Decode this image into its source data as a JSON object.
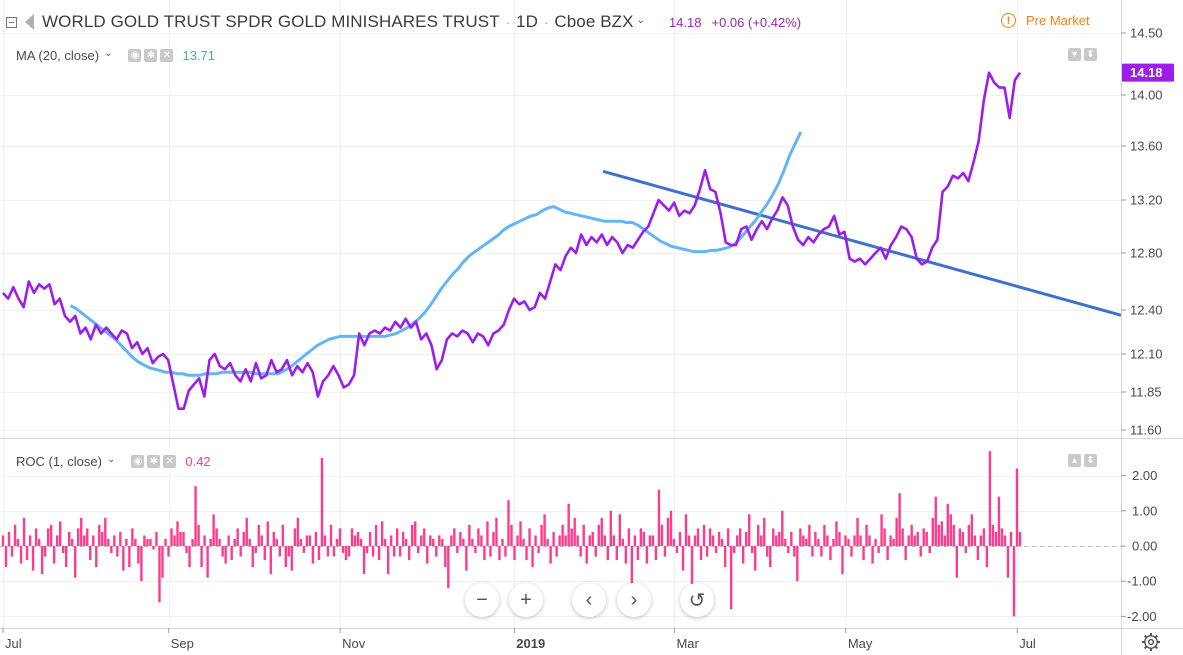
{
  "header": {
    "symbol_title": "WORLD GOLD TRUST SPDR GOLD MINISHARES TRUST",
    "interval": "1D",
    "exchange": "Cboe BZX",
    "last": "14.18",
    "change": "+0.06 (+0.42%)",
    "pre_market": "Pre Market",
    "last_color": "#9c27b0",
    "ma_label": "MA (20, close)",
    "ma_value": "13.71",
    "roc_label": "ROC (1, close)",
    "roc_value": "0.42"
  },
  "colors": {
    "price": "#9b1fe8",
    "ma": "#64b5f6",
    "trend": "#3f71cc",
    "roc": "#ff3b8d",
    "grid": "#f0f0f0",
    "axis_text": "#4a4a4a"
  },
  "icons": [
    "collapse-icon",
    "flag-icon",
    "dropdown-chevron-icon",
    "eye-icon",
    "settings-icon",
    "close-icon",
    "alert-icon",
    "gear-icon",
    "arrow-up-icon",
    "arrow-down-icon"
  ],
  "nav": {
    "zoom_out": "−",
    "zoom_in": "+",
    "back": "‹",
    "forward": "›",
    "reset": "↺"
  },
  "chart_data": [
    {
      "type": "line",
      "title": "WORLD GOLD TRUST SPDR GOLD MINISHARES TRUST · 1D · Cboe BZX",
      "x_ticks": [
        {
          "label": "Jul",
          "x": 0.0
        },
        {
          "label": "Sep",
          "x": 59.0
        },
        {
          "label": "Nov",
          "x": 120.0
        },
        {
          "label": "2019",
          "x": 182.0
        },
        {
          "label": "Mar",
          "x": 239.0
        },
        {
          "label": "May",
          "x": 300.0
        },
        {
          "label": "Jul",
          "x": 361.0
        }
      ],
      "ylim": [
        11.5,
        14.6
      ],
      "y_ticks": [
        11.6,
        11.85,
        12.1,
        12.4,
        12.8,
        13.2,
        13.6,
        14.0,
        14.5
      ],
      "last_value_label": "14.18",
      "series": [
        {
          "name": "Price",
          "step": 2,
          "values": [
            12.52,
            12.48,
            12.56,
            12.48,
            12.42,
            12.6,
            12.52,
            12.58,
            12.55,
            12.58,
            12.44,
            12.48,
            12.36,
            12.32,
            12.36,
            12.24,
            12.28,
            12.2,
            12.3,
            12.24,
            12.28,
            12.24,
            12.2,
            12.26,
            12.24,
            12.14,
            12.18,
            12.1,
            12.14,
            12.04,
            12.08,
            12.1,
            12.06,
            11.9,
            11.74,
            11.74,
            11.86,
            11.9,
            11.94,
            11.82,
            12.06,
            12.1,
            12.02,
            12.0,
            12.04,
            11.96,
            11.92,
            12.0,
            11.92,
            12.04,
            11.94,
            11.96,
            12.06,
            11.98,
            12.0,
            12.06,
            11.96,
            12.02,
            11.98,
            12.04,
            11.98,
            11.82,
            11.92,
            11.96,
            12.02,
            11.96,
            11.88,
            11.9,
            11.96,
            12.24,
            12.16,
            12.24,
            12.26,
            12.24,
            12.28,
            12.26,
            12.32,
            12.28,
            12.34,
            12.28,
            12.32,
            12.2,
            12.24,
            12.16,
            12.0,
            12.06,
            12.2,
            12.24,
            12.22,
            12.26,
            12.24,
            12.18,
            12.24,
            12.22,
            12.16,
            12.24,
            12.26,
            12.3,
            12.4,
            12.48,
            12.44,
            12.46,
            12.4,
            12.42,
            12.52,
            12.48,
            12.6,
            12.72,
            12.68,
            12.78,
            12.84,
            12.8,
            12.94,
            12.86,
            12.92,
            12.88,
            12.94,
            12.86,
            12.92,
            12.88,
            12.8,
            12.86,
            12.84,
            12.9,
            12.96,
            13.0,
            13.1,
            13.2,
            13.16,
            13.12,
            13.18,
            13.08,
            13.12,
            13.1,
            13.16,
            13.28,
            13.42,
            13.28,
            13.26,
            13.1,
            12.88,
            12.86,
            12.86,
            12.98,
            13.0,
            12.9,
            12.98,
            13.04,
            12.98,
            13.06,
            13.12,
            13.22,
            13.16,
            13.0,
            12.9,
            12.86,
            12.92,
            12.88,
            12.94,
            12.98,
            13.0,
            13.08,
            12.94,
            12.96,
            12.76,
            12.74,
            12.76,
            12.72,
            12.76,
            12.8,
            12.84,
            12.76,
            12.86,
            12.92,
            13.0,
            12.98,
            12.92,
            12.76,
            12.72,
            12.74,
            12.84,
            12.9,
            13.26,
            13.3,
            13.38,
            13.36,
            13.4,
            13.34,
            13.48,
            13.64,
            13.96,
            14.18,
            14.1,
            14.06,
            14.06,
            13.82,
            14.12,
            14.18
          ]
        },
        {
          "name": "MA (20, close)",
          "x_start": 24,
          "step": 2,
          "values": [
            12.43,
            12.41,
            12.38,
            12.35,
            12.32,
            12.29,
            12.26,
            12.23,
            12.2,
            12.16,
            12.12,
            12.08,
            12.05,
            12.03,
            12.01,
            12.0,
            11.99,
            11.98,
            11.98,
            11.97,
            11.97,
            11.96,
            11.96,
            11.96,
            11.97,
            11.97,
            11.97,
            11.98,
            11.98,
            11.98,
            11.98,
            11.98,
            11.98,
            11.97,
            11.97,
            11.97,
            11.97,
            11.97,
            11.99,
            12.01,
            12.04,
            12.07,
            12.1,
            12.13,
            12.16,
            12.18,
            12.2,
            12.21,
            12.22,
            12.22,
            12.22,
            12.22,
            12.22,
            12.22,
            12.22,
            12.22,
            12.22,
            12.23,
            12.24,
            12.26,
            12.28,
            12.31,
            12.34,
            12.38,
            12.43,
            12.49,
            12.55,
            12.6,
            12.65,
            12.69,
            12.74,
            12.78,
            12.81,
            12.84,
            12.87,
            12.9,
            12.93,
            12.97,
            13.0,
            13.02,
            13.04,
            13.06,
            13.08,
            13.09,
            13.12,
            13.14,
            13.15,
            13.13,
            13.11,
            13.1,
            13.09,
            13.08,
            13.07,
            13.06,
            13.05,
            13.04,
            13.04,
            13.04,
            13.04,
            13.03,
            13.03,
            13.01,
            12.98,
            12.95,
            12.92,
            12.89,
            12.87,
            12.85,
            12.84,
            12.83,
            12.82,
            12.81,
            12.81,
            12.81,
            12.82,
            12.82,
            12.83,
            12.84,
            12.86,
            12.9,
            12.95,
            13.0,
            13.05,
            13.11,
            13.17,
            13.24,
            13.32,
            13.42,
            13.53,
            13.62,
            13.71
          ]
        }
      ],
      "trendline": {
        "x": [
          214,
          362
        ],
        "y": [
          13.41,
          12.56
        ]
      }
    },
    {
      "type": "bar",
      "title": "ROC (1, close)",
      "ylim": [
        -2.3,
        2.75
      ],
      "y_ticks": [
        2.0,
        1.0,
        0.0,
        -1.0,
        -2.0
      ],
      "step": 1,
      "series": [
        {
          "name": "ROC (1, close)",
          "values": [
            0.3,
            -0.6,
            0.4,
            -0.3,
            0.6,
            0.2,
            -0.5,
            0.8,
            -0.4,
            0.3,
            -0.7,
            0.5,
            0.2,
            -0.8,
            -0.3,
            0.5,
            0.6,
            -0.5,
            0.3,
            0.7,
            -0.2,
            -0.6,
            0.4,
            0.2,
            -0.9,
            0.5,
            0.8,
            0.3,
            0.5,
            -0.4,
            0.3,
            -0.6,
            0.6,
            0.4,
            0.8,
            0.2,
            -0.2,
            0.3,
            -0.3,
            0.4,
            -0.7,
            0.2,
            -0.6,
            0.5,
            0.2,
            -0.5,
            -1.0,
            0.3,
            0.2,
            0.2,
            -0.1,
            0.4,
            -1.6,
            -0.9,
            0.2,
            -0.3,
            0.5,
            0.3,
            0.7,
            0.4,
            0.4,
            -0.2,
            -0.6,
            0.2,
            1.7,
            0.6,
            -0.6,
            0.3,
            -0.9,
            0.2,
            0.9,
            0.5,
            0.2,
            -0.3,
            -0.5,
            0.3,
            -0.4,
            0.2,
            0.5,
            -0.3,
            0.4,
            0.8,
            0.2,
            -0.6,
            -0.2,
            0.6,
            0.3,
            -0.4,
            0.7,
            -0.8,
            0.4,
            0.2,
            -0.3,
            0.6,
            -0.6,
            -0.3,
            -0.7,
            0.5,
            0.8,
            0.2,
            -0.2,
            0.3,
            0.3,
            -0.5,
            0.4,
            -0.4,
            2.5,
            0.3,
            -0.3,
            0.6,
            -0.3,
            0.2,
            0.5,
            -0.2,
            -0.4,
            -0.3,
            0.5,
            0.3,
            0.4,
            0.2,
            -0.8,
            -0.2,
            0.4,
            -0.3,
            0.6,
            -0.4,
            0.7,
            0.2,
            -0.8,
            0.3,
            -0.3,
            0.5,
            -0.3,
            0.4,
            0.2,
            -0.4,
            0.6,
            0.7,
            -0.2,
            0.3,
            0.5,
            -0.5,
            0.3,
            0.2,
            -0.3,
            0.3,
            0.2,
            -0.6,
            -1.2,
            0.3,
            0.5,
            -0.2,
            0.4,
            0.2,
            -0.7,
            0.6,
            0.2,
            -0.2,
            0.5,
            0.3,
            -0.4,
            0.7,
            -0.3,
            0.4,
            0.8,
            -0.4,
            0.2,
            -0.3,
            1.3,
            0.6,
            -0.4,
            0.3,
            0.7,
            0.2,
            -0.4,
            0.5,
            -0.6,
            0.3,
            -0.2,
            0.6,
            0.9,
            0.2,
            -0.5,
            0.4,
            -0.3,
            0.3,
            0.6,
            0.3,
            1.2,
            0.5,
            0.8,
            0.3,
            -0.3,
            0.6,
            -0.5,
            0.3,
            0.4,
            -0.3,
            0.6,
            0.8,
            0.3,
            -0.4,
            1.0,
            0.3,
            -0.4,
            0.9,
            0.2,
            -0.5,
            0.5,
            -1.5,
            0.3,
            -0.4,
            0.5,
            0.4,
            -0.5,
            0.3,
            0.3,
            -0.4,
            1.6,
            0.6,
            -0.3,
            0.8,
            1.0,
            0.2,
            -0.2,
            0.4,
            -0.7,
            0.9,
            0.3,
            -1.8,
            0.3,
            0.5,
            -0.4,
            0.6,
            -0.3,
            0.5,
            0.3,
            -0.2,
            0.4,
            0.2,
            -0.6,
            0.5,
            -1.8,
            -0.2,
            0.3,
            0.5,
            -0.5,
            0.4,
            0.9,
            -0.2,
            -0.7,
            0.6,
            0.3,
            0.8,
            -0.3,
            -0.6,
            0.5,
            0.3,
            0.4,
            1.0,
            0.2,
            -0.2,
            0.4,
            -0.3,
            -1.0,
            0.5,
            0.3,
            0.2,
            0.6,
            -0.3,
            0.4,
            0.2,
            -0.3,
            0.6,
            0.3,
            -0.4,
            0.2,
            0.7,
            0.4,
            -0.8,
            0.3,
            0.2,
            -0.3,
            0.3,
            0.8,
            0.3,
            -0.4,
            0.6,
            0.3,
            -0.5,
            0.2,
            -0.2,
            0.9,
            0.5,
            -0.4,
            0.3,
            0.2,
            0.8,
            1.5,
            0.5,
            -0.4,
            0.3,
            0.6,
            0.3,
            0.4,
            -0.3,
            0.5,
            0.4,
            -0.2,
            0.8,
            1.4,
            0.6,
            0.7,
            0.3,
            1.2,
            0.9,
            0.6,
            -0.9,
            0.5,
            0.4,
            -0.2,
            0.6,
            0.9,
            0.3,
            -0.4,
            0.3,
            0.5,
            -0.6,
            2.7,
            0.6,
            0.4,
            1.4,
            0.5,
            0.3,
            -0.9,
            0.4,
            -2.0,
            2.2,
            0.4
          ]
        }
      ],
      "last_value_label": "0.42"
    }
  ]
}
